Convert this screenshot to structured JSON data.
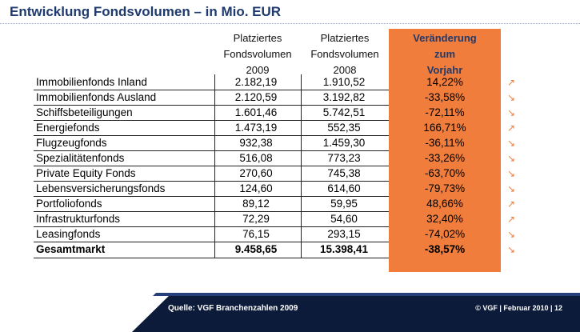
{
  "title": "Entwicklung Fondsvolumen – in Mio. EUR",
  "columns": {
    "col2009": [
      "Platziertes",
      "Fondsvolumen",
      "2009"
    ],
    "col2008": [
      "Platziertes",
      "Fondsvolumen",
      "2008"
    ],
    "change": [
      "Veränderung",
      "zum",
      "Vorjahr"
    ]
  },
  "rows": [
    {
      "name": "Immobilienfonds Inland",
      "v2009": "2.182,19",
      "v2008": "1.910,52",
      "change": "14,22%",
      "trend": "up"
    },
    {
      "name": "Immobilienfonds Ausland",
      "v2009": "2.120,59",
      "v2008": "3.192,82",
      "change": "-33,58%",
      "trend": "down"
    },
    {
      "name": "Schiffsbeteiligungen",
      "v2009": "1.601,46",
      "v2008": "5.742,51",
      "change": "-72,11%",
      "trend": "down"
    },
    {
      "name": "Energiefonds",
      "v2009": "1.473,19",
      "v2008": "552,35",
      "change": "166,71%",
      "trend": "up"
    },
    {
      "name": "Flugzeugfonds",
      "v2009": "932,38",
      "v2008": "1.459,30",
      "change": "-36,11%",
      "trend": "down"
    },
    {
      "name": "Spezialitätenfonds",
      "v2009": "516,08",
      "v2008": "773,23",
      "change": "-33,26%",
      "trend": "down"
    },
    {
      "name": "Private Equity Fonds",
      "v2009": "270,60",
      "v2008": "745,38",
      "change": "-63,70%",
      "trend": "down"
    },
    {
      "name": "Lebensversicherungsfonds",
      "v2009": "124,60",
      "v2008": "614,60",
      "change": "-79,73%",
      "trend": "down"
    },
    {
      "name": "Portfoliofonds",
      "v2009": "89,12",
      "v2008": "59,95",
      "change": "48,66%",
      "trend": "up"
    },
    {
      "name": "Infrastrukturfonds",
      "v2009": "72,29",
      "v2008": "54,60",
      "change": "32,40%",
      "trend": "up"
    },
    {
      "name": "Leasingfonds",
      "v2009": "76,15",
      "v2008": "293,15",
      "change": "-74,02%",
      "trend": "down"
    }
  ],
  "total": {
    "name": "Gesamtmarkt",
    "v2009": "9.458,65",
    "v2008": "15.398,41",
    "change": "-38,57%",
    "trend": "down"
  },
  "arrows": {
    "up": "↗",
    "down": "↘"
  },
  "footer": {
    "source": "Quelle: VGF Branchenzahlen 2009",
    "copyright": "© VGF | Februar 2010 | 12"
  },
  "colors": {
    "accent": "#f07d3c",
    "title": "#1f3a6e",
    "footer": "#0c1b3a"
  }
}
